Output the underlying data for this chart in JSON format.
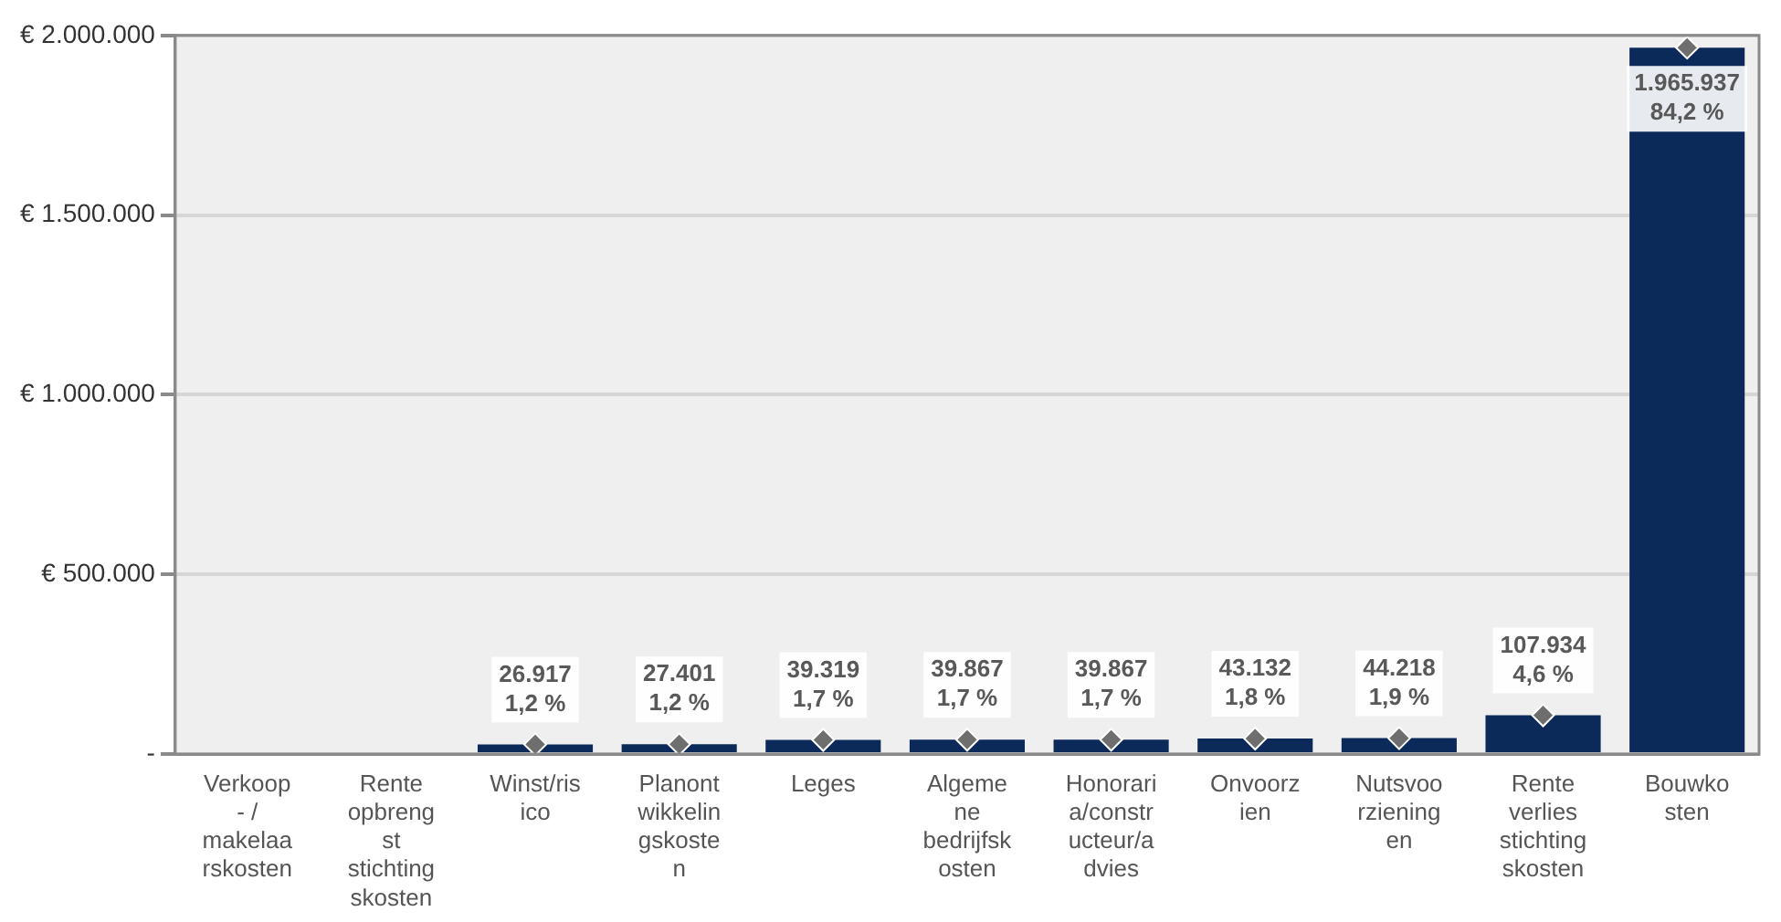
{
  "chart_data": {
    "type": "bar",
    "categories": [
      "Verkoop\n- /\nmakelaa\nrskosten",
      "Rente\nopbreng\nst\nstichting\nskosten",
      "Winst/ris\nico",
      "Planont\nwikkelin\ngskoste\nn",
      "Leges",
      "Algeme\nne\nbedrijfsk\nosten",
      "Honorari\na/constr\nucteur/a\ndvies",
      "Onvoorz\nien",
      "Nutsvoo\nrziening\nen",
      "Rente\nverlies\nstichting\nskosten",
      "Bouwko\nsten"
    ],
    "series": [
      {
        "color": "#0b2a5a",
        "values": [
          0,
          0,
          26917,
          27401,
          39319,
          39867,
          39867,
          43132,
          44218,
          107934,
          1965937
        ],
        "value_labels": [
          null,
          null,
          "26.917\n1,2 %",
          "27.401\n1,2 %",
          "39.319\n1,7 %",
          "39.867\n1,7 %",
          "39.867\n1,7 %",
          "43.132\n1,8 %",
          "44.218\n1,9 %",
          "107.934\n4,6 %",
          "1.965.937\n84,2 %"
        ]
      },
      {
        "type": "scatter",
        "color": "#6e6e6e",
        "values": [
          null,
          null,
          26917,
          27401,
          39319,
          39867,
          39867,
          43132,
          44218,
          107934,
          1965937
        ]
      }
    ],
    "marker": "diamond",
    "ylim": [
      0,
      2000000
    ],
    "yticks": [
      {
        "value": 0,
        "label": "-"
      },
      {
        "value": 500000,
        "label": "€ 500.000"
      },
      {
        "value": 1000000,
        "label": "€ 1.000.000"
      },
      {
        "value": 1500000,
        "label": "€ 1.500.000"
      },
      {
        "value": 2000000,
        "label": "€ 2.000.000"
      }
    ],
    "grid": "y",
    "legend": false
  }
}
